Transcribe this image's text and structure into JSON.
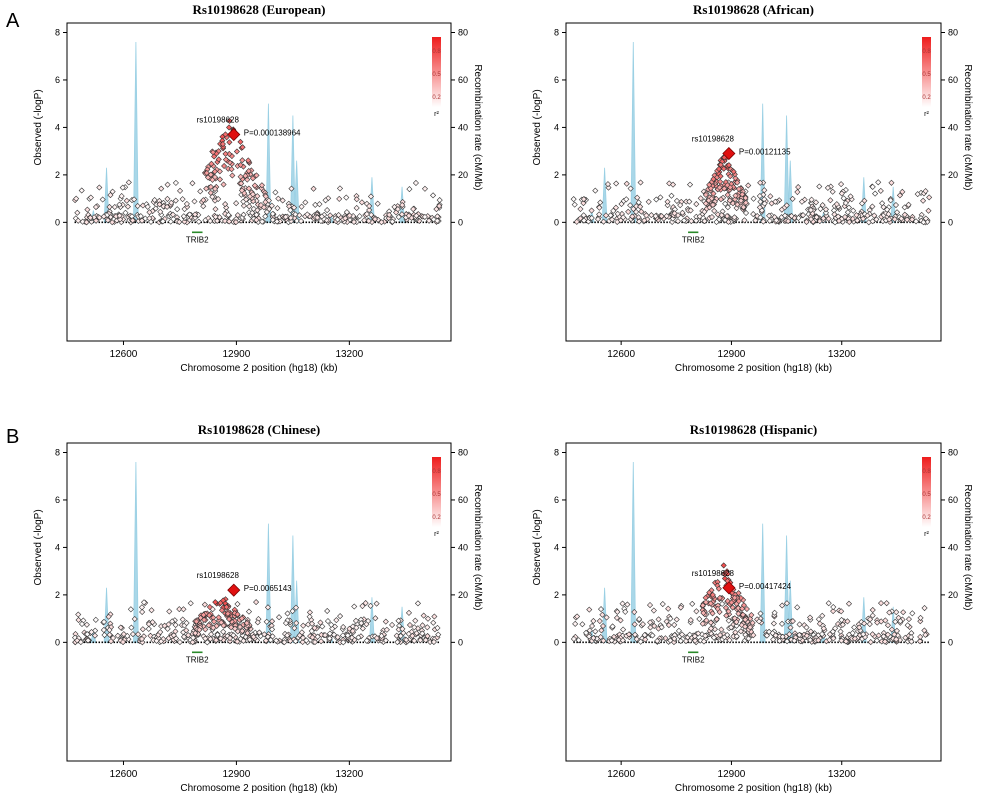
{
  "figure": {
    "panel_labels": [
      "A",
      "B"
    ]
  },
  "chart_data": [
    {
      "type": "scatter",
      "title": "Rs10198628 (European)",
      "xlabel": "Chromosome 2 position (hg18) (kb)",
      "ylabel": "Observed (-logP)",
      "y2label": "Recombination rate (cM/Mb)",
      "xlim": [
        12450,
        13470
      ],
      "ylim": [
        -5,
        8.4
      ],
      "y2lim": [
        -50,
        84
      ],
      "xticks": [
        12600,
        12900,
        13200
      ],
      "yticks": [
        0,
        2,
        4,
        6,
        8
      ],
      "y2ticks": [
        0,
        20,
        40,
        60,
        80
      ],
      "lead_snp": {
        "name": "rs10198628",
        "x": 12893,
        "y": 3.7,
        "p_label": "P=0.000138964"
      },
      "gene": {
        "name": "TRIB2",
        "start": 12782,
        "end": 12810
      },
      "recombination_peaks": [
        {
          "x": 12555,
          "rate": 23
        },
        {
          "x": 12633,
          "rate": 76
        },
        {
          "x": 12985,
          "rate": 50
        },
        {
          "x": 13050,
          "rate": 45
        },
        {
          "x": 13060,
          "rate": 26
        },
        {
          "x": 13260,
          "rate": 19
        },
        {
          "x": 13340,
          "rate": 15
        },
        {
          "x": 12520,
          "rate": 5
        },
        {
          "x": 13150,
          "rate": 4
        }
      ],
      "legend": {
        "title": "r²",
        "ticks": [
          "0.8",
          "0.5",
          "0.2"
        ],
        "colors": [
          "#ee1c1c",
          "#ffffff"
        ]
      },
      "ld_region": {
        "center": 12880,
        "start": 12810,
        "end": 12980,
        "peak": 4.4
      }
    },
    {
      "type": "scatter",
      "title": "Rs10198628 (African)",
      "xlabel": "Chromosome 2 position (hg18) (kb)",
      "ylabel": "Observed (-logP)",
      "y2label": "Recombination rate (cM/Mb)",
      "xlim": [
        12450,
        13470
      ],
      "ylim": [
        -5,
        8.4
      ],
      "y2lim": [
        -50,
        84
      ],
      "xticks": [
        12600,
        12900,
        13200
      ],
      "yticks": [
        0,
        2,
        4,
        6,
        8
      ],
      "y2ticks": [
        0,
        20,
        40,
        60,
        80
      ],
      "lead_snp": {
        "name": "rs10198628",
        "x": 12893,
        "y": 2.9,
        "p_label": "P=0.00121135"
      },
      "gene": {
        "name": "TRIB2",
        "start": 12782,
        "end": 12810
      },
      "recombination_peaks": [
        {
          "x": 12555,
          "rate": 23
        },
        {
          "x": 12633,
          "rate": 76
        },
        {
          "x": 12985,
          "rate": 50
        },
        {
          "x": 13050,
          "rate": 45
        },
        {
          "x": 13060,
          "rate": 26
        },
        {
          "x": 13260,
          "rate": 19
        },
        {
          "x": 13340,
          "rate": 15
        },
        {
          "x": 12520,
          "rate": 5
        },
        {
          "x": 13150,
          "rate": 4
        }
      ],
      "legend": {
        "title": "r²",
        "ticks": [
          "0.8",
          "0.5",
          "0.2"
        ],
        "colors": [
          "#ee1c1c",
          "#ffffff"
        ]
      },
      "ld_region": {
        "center": 12880,
        "start": 12830,
        "end": 12940,
        "peak": 3.0
      }
    },
    {
      "type": "scatter",
      "title": "Rs10198628 (Chinese)",
      "xlabel": "Chromosome 2 position (hg18) (kb)",
      "ylabel": "Observed (-logP)",
      "y2label": "Recombination rate (cM/Mb)",
      "xlim": [
        12450,
        13470
      ],
      "ylim": [
        -5,
        8.4
      ],
      "y2lim": [
        -50,
        84
      ],
      "xticks": [
        12600,
        12900,
        13200
      ],
      "yticks": [
        0,
        2,
        4,
        6,
        8
      ],
      "y2ticks": [
        0,
        20,
        40,
        60,
        80
      ],
      "lead_snp": {
        "name": "rs10198628",
        "x": 12893,
        "y": 2.2,
        "p_label": "P=0.0065143"
      },
      "gene": {
        "name": "TRIB2",
        "start": 12782,
        "end": 12810
      },
      "recombination_peaks": [
        {
          "x": 12555,
          "rate": 23
        },
        {
          "x": 12633,
          "rate": 76
        },
        {
          "x": 12985,
          "rate": 50
        },
        {
          "x": 13050,
          "rate": 45
        },
        {
          "x": 13060,
          "rate": 26
        },
        {
          "x": 13260,
          "rate": 19
        },
        {
          "x": 13340,
          "rate": 15
        },
        {
          "x": 12520,
          "rate": 5
        },
        {
          "x": 13150,
          "rate": 4
        }
      ],
      "legend": {
        "title": "r²",
        "ticks": [
          "0.8",
          "0.5",
          "0.2"
        ],
        "colors": [
          "#ee1c1c",
          "#ffffff"
        ]
      },
      "ld_region": {
        "center": 12860,
        "start": 12790,
        "end": 12940,
        "peak": 2.0
      }
    },
    {
      "type": "scatter",
      "title": "Rs10198628 (Hispanic)",
      "xlabel": "Chromosome 2 position (hg18) (kb)",
      "ylabel": "Observed (-logP)",
      "y2label": "Recombination rate (cM/Mb)",
      "xlim": [
        12450,
        13470
      ],
      "ylim": [
        -5,
        8.4
      ],
      "y2lim": [
        -50,
        84
      ],
      "xticks": [
        12600,
        12900,
        13200
      ],
      "yticks": [
        0,
        2,
        4,
        6,
        8
      ],
      "y2ticks": [
        0,
        20,
        40,
        60,
        80
      ],
      "lead_snp": {
        "name": "rs10198628",
        "x": 12893,
        "y": 2.3,
        "p_label": "P=0.00417424"
      },
      "gene": {
        "name": "TRIB2",
        "start": 12782,
        "end": 12810
      },
      "recombination_peaks": [
        {
          "x": 12555,
          "rate": 23
        },
        {
          "x": 12633,
          "rate": 76
        },
        {
          "x": 12985,
          "rate": 50
        },
        {
          "x": 13050,
          "rate": 45
        },
        {
          "x": 13060,
          "rate": 26
        },
        {
          "x": 13260,
          "rate": 19
        },
        {
          "x": 13340,
          "rate": 15
        },
        {
          "x": 12520,
          "rate": 5
        },
        {
          "x": 13150,
          "rate": 4
        }
      ],
      "legend": {
        "title": "r²",
        "ticks": [
          "0.8",
          "0.5",
          "0.2"
        ],
        "colors": [
          "#ee1c1c",
          "#ffffff"
        ]
      },
      "ld_region": {
        "center": 12880,
        "start": 12820,
        "end": 12960,
        "peak": 3.3
      }
    }
  ]
}
